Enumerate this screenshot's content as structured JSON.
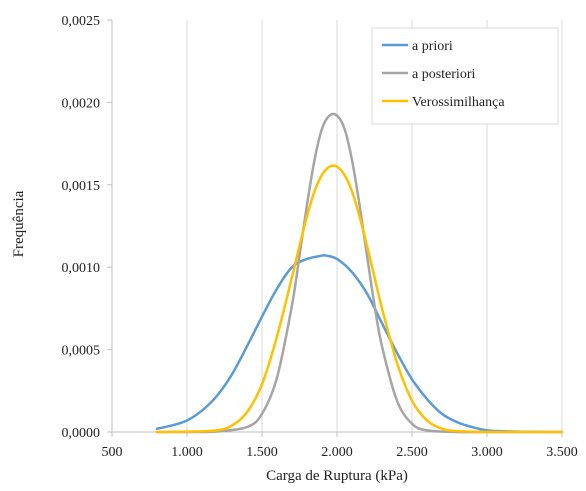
{
  "chart_data": {
    "type": "line",
    "title": "",
    "xlabel": "Carga de Ruptura (kPa)",
    "ylabel": "Frequência",
    "xlim": [
      500,
      3500
    ],
    "ylim": [
      0,
      0.0025
    ],
    "x_ticks": [
      500,
      1000,
      1500,
      2000,
      2500,
      3000,
      3500
    ],
    "x_tick_labels": [
      "500",
      "1.000",
      "1.500",
      "2.000",
      "2.500",
      "3.000",
      "3.500"
    ],
    "y_ticks": [
      0,
      0.0005,
      0.001,
      0.0015,
      0.002,
      0.0025
    ],
    "y_tick_labels": [
      "0,0000",
      "0,0005",
      "0,0010",
      "0,0015",
      "0,0020",
      "0,0025"
    ],
    "grid": "vertical",
    "legend_position": "top-right",
    "series": [
      {
        "name": "a priori",
        "color": "#5b9bd5",
        "x": [
          800,
          900,
          1000,
          1100,
          1200,
          1300,
          1400,
          1500,
          1600,
          1700,
          1800,
          1900,
          1930,
          2000,
          2100,
          2200,
          2300,
          2400,
          2500,
          2600,
          2700,
          2800,
          2900,
          3000,
          3100,
          3200,
          3300,
          3400,
          3500
        ],
        "y": [
          2e-05,
          4e-05,
          7e-05,
          0.00013,
          0.00022,
          0.00035,
          0.00052,
          0.0007,
          0.00087,
          0.001,
          0.00105,
          0.00107,
          0.00107,
          0.00105,
          0.00097,
          0.00084,
          0.00066,
          0.00048,
          0.00032,
          0.0002,
          0.00011,
          6e-05,
          3e-05,
          1e-05,
          5e-06,
          2e-06,
          1e-06,
          0,
          0
        ]
      },
      {
        "name": "a posteriori",
        "color": "#a5a5a5",
        "x": [
          800,
          1000,
          1200,
          1400,
          1500,
          1600,
          1700,
          1750,
          1800,
          1850,
          1900,
          1950,
          2000,
          2050,
          2100,
          2150,
          2200,
          2250,
          2300,
          2400,
          2500,
          2600,
          2800,
          3000,
          3500
        ],
        "y": [
          0,
          0,
          3e-06,
          3e-05,
          0.00011,
          0.00033,
          0.00077,
          0.00107,
          0.00138,
          0.00165,
          0.00184,
          0.00192,
          0.00192,
          0.00184,
          0.00165,
          0.00138,
          0.00107,
          0.00077,
          0.00052,
          0.00019,
          5e-05,
          1e-05,
          0,
          0,
          0
        ]
      },
      {
        "name": "Verossimilhança",
        "color": "#ffc000",
        "x": [
          800,
          1000,
          1200,
          1300,
          1400,
          1500,
          1600,
          1700,
          1750,
          1800,
          1850,
          1900,
          1950,
          2000,
          2050,
          2100,
          2150,
          2200,
          2250,
          2300,
          2400,
          2500,
          2600,
          2700,
          2800,
          3000,
          3500
        ],
        "y": [
          0,
          2e-06,
          1e-05,
          4e-05,
          0.00012,
          0.00029,
          0.00058,
          0.00094,
          0.00113,
          0.00131,
          0.00146,
          0.00156,
          0.00161,
          0.00161,
          0.00156,
          0.00146,
          0.00131,
          0.00113,
          0.00094,
          0.00075,
          0.00042,
          0.00019,
          7e-05,
          2e-05,
          5e-06,
          0,
          0
        ]
      }
    ]
  }
}
